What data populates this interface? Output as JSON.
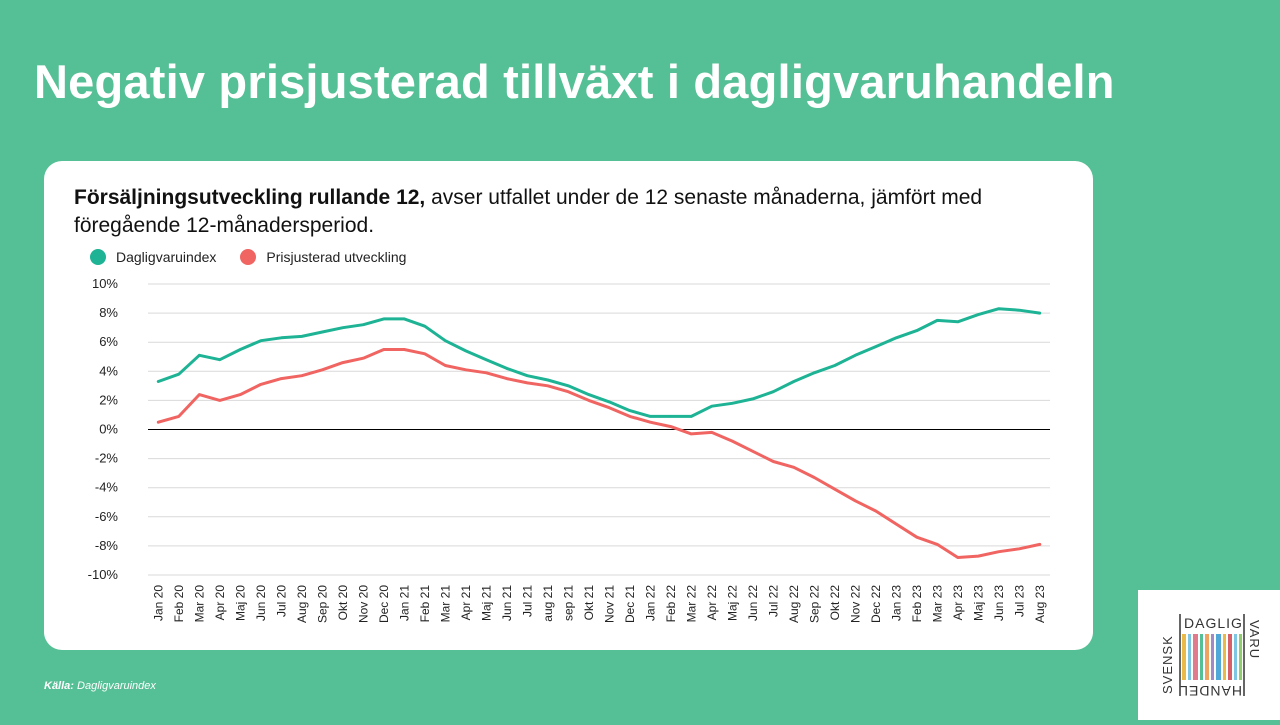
{
  "slide": {
    "title": "Negativ prisjusterad tillväxt i dagligvaruhandeln",
    "source_label": "Källa:",
    "source_text": "Dagligvaruindex"
  },
  "logo": {
    "word_left": "SVENSK",
    "word_top": "DAGLIG",
    "word_right": "VARU",
    "word_bottom": "HANDEL"
  },
  "chart_data": {
    "type": "line",
    "title_bold": "Försäljningsutveckling rullande 12,",
    "title_rest": " avser utfallet under de 12 senaste månaderna, jämfört med föregående 12-månadersperiod.",
    "xlabel": "",
    "ylabel": "",
    "ylim": [
      -10,
      10
    ],
    "ytick_step": 2,
    "ytick_suffix": "%",
    "grid": true,
    "legend_position": "top-left",
    "categories": [
      "Jan 20",
      "Feb 20",
      "Mar 20",
      "Apr 20",
      "Maj 20",
      "Jun 20",
      "Jul 20",
      "Aug 20",
      "Sep 20",
      "Okt 20",
      "Nov 20",
      "Dec 20",
      "Jan 21",
      "Feb 21",
      "Mar 21",
      "Apr 21",
      "Maj 21",
      "Jun 21",
      "Jul 21",
      "aug 21",
      "sep 21",
      "Okt 21",
      "Nov 21",
      "Dec 21",
      "Jan 22",
      "Feb 22",
      "Mar 22",
      "Apr 22",
      "Maj 22",
      "Jun 22",
      "Jul 22",
      "Aug 22",
      "Sep 22",
      "Okt 22",
      "Nov 22",
      "Dec 22",
      "Jan 23",
      "Feb 23",
      "Mar 23",
      "Apr 23",
      "Maj 23",
      "Jun 23",
      "Jul 23",
      "Aug 23"
    ],
    "series": [
      {
        "name": "Dagligvaruindex",
        "color": "#1db394",
        "values": [
          3.3,
          3.8,
          5.1,
          4.8,
          5.5,
          6.1,
          6.3,
          6.4,
          6.7,
          7.0,
          7.2,
          7.6,
          7.6,
          7.1,
          6.1,
          5.4,
          4.8,
          4.2,
          3.7,
          3.4,
          3.0,
          2.4,
          1.9,
          1.3,
          0.9,
          0.9,
          0.9,
          1.6,
          1.8,
          2.1,
          2.6,
          3.3,
          3.9,
          4.4,
          5.1,
          5.7,
          6.3,
          6.8,
          7.5,
          7.4,
          7.9,
          8.3,
          8.2,
          8.0
        ]
      },
      {
        "name": "Prisjusterad utveckling",
        "color": "#f06461",
        "values": [
          0.5,
          0.9,
          2.4,
          2.0,
          2.4,
          3.1,
          3.5,
          3.7,
          4.1,
          4.6,
          4.9,
          5.5,
          5.5,
          5.2,
          4.4,
          4.1,
          3.9,
          3.5,
          3.2,
          3.0,
          2.6,
          2.0,
          1.5,
          0.9,
          0.5,
          0.2,
          -0.3,
          -0.2,
          -0.8,
          -1.5,
          -2.2,
          -2.6,
          -3.3,
          -4.1,
          -4.9,
          -5.6,
          -6.5,
          -7.4,
          -7.9,
          -8.8,
          -8.7,
          -8.4,
          -8.2,
          -7.9
        ]
      }
    ]
  }
}
